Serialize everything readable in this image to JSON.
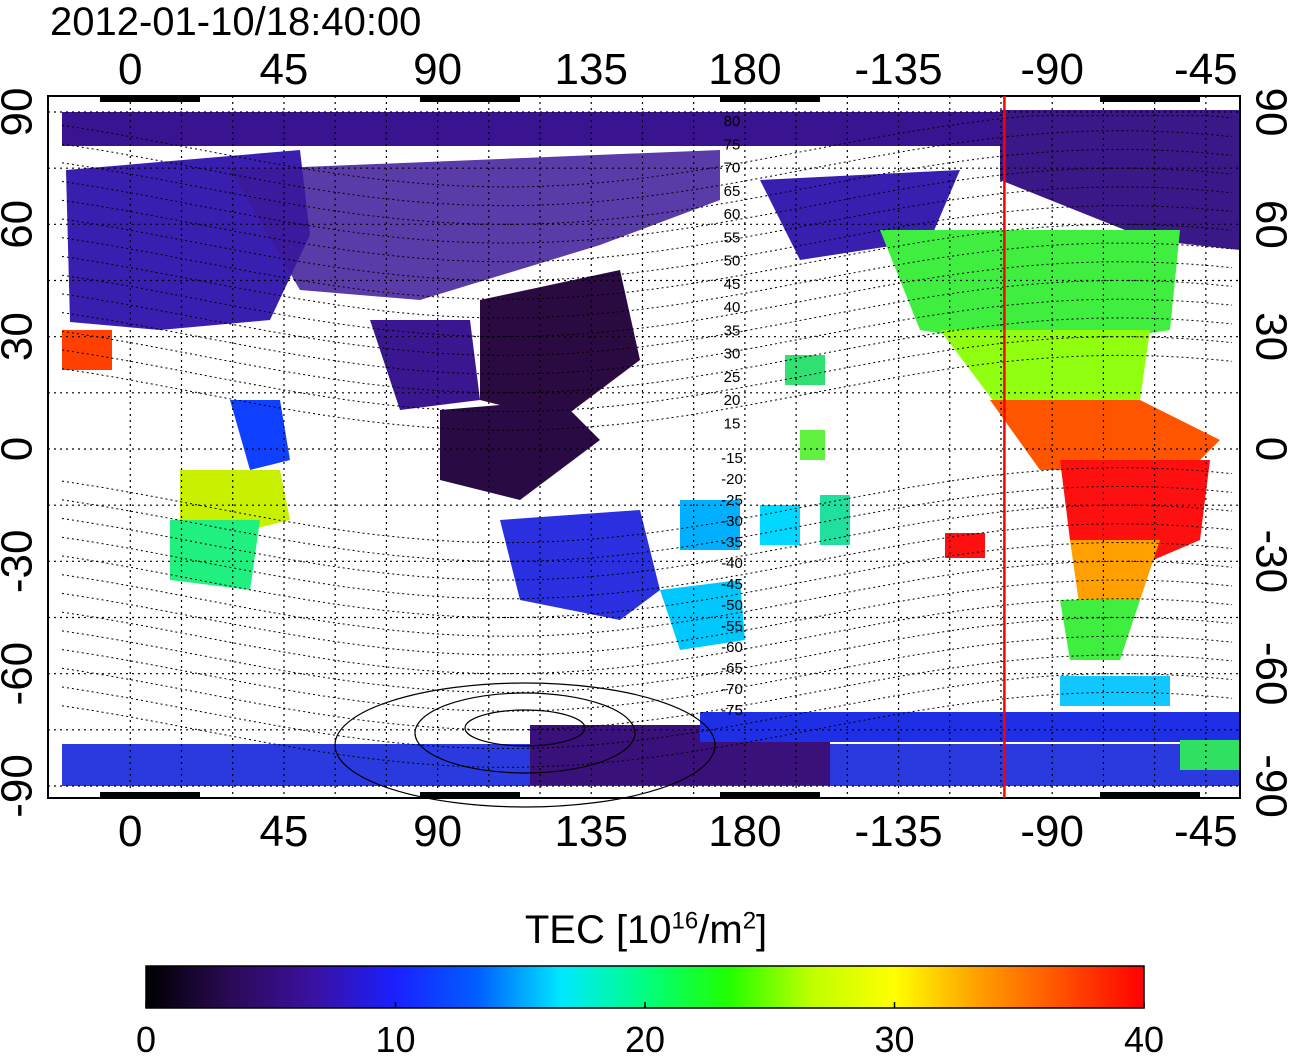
{
  "title": "2012-01-10/18:40:00",
  "map": {
    "lon_ticks_top": [
      "0",
      "45",
      "90",
      "135",
      "180",
      "-135",
      "-90",
      "-45"
    ],
    "lon_ticks_bottom": [
      "0",
      "45",
      "90",
      "135",
      "180",
      "-135",
      "-90",
      "-45"
    ],
    "lat_ticks_left": [
      "90",
      "60",
      "30",
      "0",
      "-30",
      "-60",
      "-90"
    ],
    "lat_ticks_right": [
      "90",
      "60",
      "30",
      "0",
      "-30",
      "-60",
      "-90"
    ],
    "grid_lines": "dotted, every 15 degrees",
    "magnetic_latitude_labels": [
      "80",
      "75",
      "70",
      "65",
      "60",
      "55",
      "50",
      "45",
      "40",
      "35",
      "30",
      "25",
      "20",
      "15",
      "-15",
      "-20",
      "-25",
      "-30",
      "-35",
      "-40",
      "-45",
      "-50",
      "-55",
      "-60",
      "-65",
      "-70",
      "-75"
    ],
    "marker_line": {
      "color": "#ff0000",
      "longitude": -104
    }
  },
  "colorbar": {
    "title_text": "TEC  [10",
    "title_exp": "16",
    "title_unit": "/m",
    "title_exp2": "2",
    "title_close": "]",
    "min": 0,
    "max": 40,
    "ticks": [
      "0",
      "10",
      "20",
      "30",
      "40"
    ],
    "colors": [
      "#000000",
      "#2a0a55",
      "#3a10a0",
      "#1a20ff",
      "#0060ff",
      "#00e8ff",
      "#00ff80",
      "#20ff00",
      "#c0ff00",
      "#ffff00",
      "#ffa000",
      "#ff5000",
      "#ff0000"
    ]
  }
}
